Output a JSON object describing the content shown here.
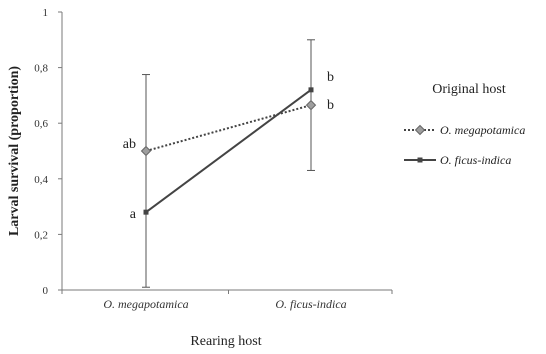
{
  "chart_data": {
    "type": "line",
    "xlabel": "Rearing host",
    "ylabel": "Larval survival (proportion)",
    "categories": [
      "O. megapotamica",
      "O. ficus-indica"
    ],
    "ylim": [
      0,
      1
    ],
    "yticks": [
      "0",
      "0,2",
      "0,4",
      "0,6",
      "0,8",
      "1"
    ],
    "ytick_values": [
      0,
      0.2,
      0.4,
      0.6,
      0.8,
      1.0
    ],
    "legend": {
      "title": "Original host",
      "placement": "right"
    },
    "series": [
      {
        "name": "O. megapotamica",
        "style": "dotted",
        "marker": "diamond",
        "color": "#444444",
        "values": [
          0.5,
          0.665
        ],
        "error_low": [
          null,
          null
        ],
        "error_high": [
          null,
          null
        ],
        "sig_labels": [
          "ab",
          "b"
        ]
      },
      {
        "name": "O. ficus-indica",
        "style": "solid",
        "marker": "square",
        "color": "#444444",
        "values": [
          0.28,
          0.72
        ],
        "error_low": [
          0.01,
          0.43
        ],
        "error_high": [
          0.775,
          0.9
        ],
        "sig_labels": [
          "a",
          "b"
        ]
      }
    ]
  }
}
